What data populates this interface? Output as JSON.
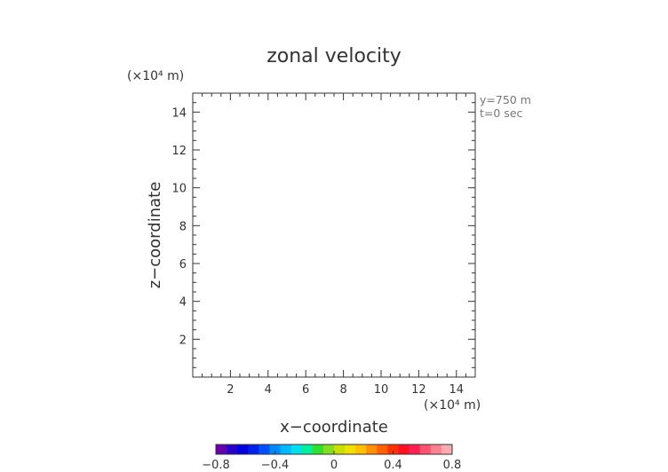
{
  "chart_data": {
    "type": "heatmap",
    "title": "zonal velocity",
    "xlabel": "x−coordinate",
    "ylabel": "z−coordinate",
    "x_unit": "(×10⁴ m)",
    "y_unit": "(×10⁴ m)",
    "xlim": [
      0,
      15
    ],
    "ylim": [
      0,
      15
    ],
    "x_ticks": [
      2,
      4,
      6,
      8,
      10,
      12,
      14
    ],
    "y_ticks": [
      2,
      4,
      6,
      8,
      10,
      12,
      14
    ],
    "x_tick_labels": [
      "2",
      "4",
      "6",
      "8",
      "10",
      "12",
      "14"
    ],
    "y_tick_labels": [
      "2",
      "4",
      "6",
      "8",
      "10",
      "12",
      "14"
    ],
    "minor_step": 0.5,
    "annotations": [
      "y=750 m",
      "t=0 sec"
    ],
    "field_values": [],
    "colorbar": {
      "range": [
        -0.8,
        0.8
      ],
      "ticks": [
        -0.8,
        -0.4,
        0,
        0.4,
        0.8
      ],
      "tick_labels": [
        "−0.8",
        "−0.4",
        "0",
        "0.4",
        "0.8"
      ],
      "colors": [
        "#6600aa",
        "#2a00c8",
        "#0000e0",
        "#0020f0",
        "#0050ff",
        "#0088ff",
        "#00b8ff",
        "#00e0f0",
        "#00f0a0",
        "#30e030",
        "#80e020",
        "#c8e000",
        "#f0e000",
        "#ffc000",
        "#ff9000",
        "#ff6000",
        "#ff3000",
        "#ff1020",
        "#ff2050",
        "#ff5070",
        "#ff8090",
        "#ffaab0"
      ]
    }
  }
}
